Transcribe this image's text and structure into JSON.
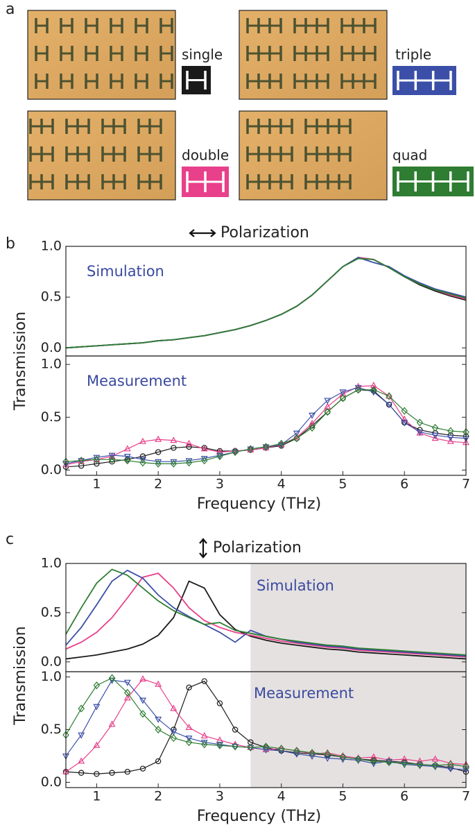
{
  "panel_a": {
    "label": "a"
  },
  "chart_data": [
    {
      "type": "line",
      "panel": "b",
      "title": "Polarization",
      "annotation": "Simulation",
      "ylabel": "Transmission",
      "x": [
        0.5,
        0.75,
        1,
        1.25,
        1.5,
        1.75,
        2,
        2.25,
        2.5,
        2.75,
        3,
        3.25,
        3.5,
        3.75,
        4,
        4.25,
        4.5,
        4.75,
        5,
        5.25,
        5.5,
        5.75,
        6,
        6.25,
        6.5,
        6.75,
        7
      ],
      "xlim": [
        0.5,
        7
      ],
      "ylim": [
        -0.08,
        1.0
      ],
      "yticks": [
        {
          "value": 0,
          "label": "0.0"
        },
        {
          "value": 0.5,
          "label": "0.5"
        },
        {
          "value": 1,
          "label": "1.0"
        }
      ],
      "series": [
        {
          "name": "single",
          "color": "#1a1a1a",
          "values": [
            0.0,
            0.01,
            0.02,
            0.03,
            0.04,
            0.05,
            0.07,
            0.08,
            0.1,
            0.12,
            0.15,
            0.18,
            0.22,
            0.27,
            0.33,
            0.41,
            0.52,
            0.66,
            0.8,
            0.89,
            0.87,
            0.79,
            0.7,
            0.62,
            0.56,
            0.51,
            0.47
          ]
        },
        {
          "name": "double",
          "color": "#e8408a",
          "values": [
            0.0,
            0.01,
            0.02,
            0.03,
            0.04,
            0.05,
            0.07,
            0.08,
            0.1,
            0.12,
            0.15,
            0.18,
            0.22,
            0.27,
            0.33,
            0.41,
            0.52,
            0.66,
            0.8,
            0.89,
            0.87,
            0.79,
            0.7,
            0.63,
            0.57,
            0.52,
            0.48
          ]
        },
        {
          "name": "triple",
          "color": "#3b4fa8",
          "values": [
            0.0,
            0.01,
            0.02,
            0.03,
            0.04,
            0.05,
            0.07,
            0.08,
            0.1,
            0.12,
            0.15,
            0.18,
            0.22,
            0.27,
            0.33,
            0.41,
            0.52,
            0.66,
            0.8,
            0.89,
            0.84,
            0.8,
            0.71,
            0.64,
            0.58,
            0.54,
            0.5
          ]
        },
        {
          "name": "quad",
          "color": "#2e7d32",
          "values": [
            0.0,
            0.01,
            0.02,
            0.03,
            0.04,
            0.05,
            0.07,
            0.08,
            0.1,
            0.12,
            0.15,
            0.18,
            0.22,
            0.27,
            0.33,
            0.41,
            0.52,
            0.66,
            0.8,
            0.88,
            0.87,
            0.79,
            0.7,
            0.63,
            0.57,
            0.53,
            0.49
          ]
        }
      ]
    },
    {
      "type": "line",
      "markers": true,
      "annotation": "Measurement",
      "xlabel": "Frequency (THz)",
      "x": [
        0.5,
        0.75,
        1,
        1.25,
        1.5,
        1.75,
        2,
        2.25,
        2.5,
        2.75,
        3,
        3.25,
        3.5,
        3.75,
        4,
        4.25,
        4.5,
        4.75,
        5,
        5.25,
        5.5,
        5.75,
        6,
        6.25,
        6.5,
        6.75,
        7
      ],
      "xlim": [
        0.5,
        7
      ],
      "ylim": [
        -0.05,
        1.08
      ],
      "xticks": [
        1,
        2,
        3,
        4,
        5,
        6,
        7
      ],
      "yticks": [
        {
          "value": 0,
          "label": "0.0"
        },
        {
          "value": 0.5,
          "label": "0.5"
        },
        {
          "value": 1,
          "label": "1.0"
        }
      ],
      "series": [
        {
          "color": "#1a1a1a",
          "marker": "circle",
          "values": [
            0.03,
            0.04,
            0.06,
            0.08,
            0.1,
            0.13,
            0.17,
            0.21,
            0.22,
            0.21,
            0.18,
            0.18,
            0.19,
            0.21,
            0.23,
            0.3,
            0.42,
            0.55,
            0.68,
            0.76,
            0.75,
            0.62,
            0.45,
            0.38,
            0.35,
            0.33,
            0.32
          ]
        },
        {
          "color": "#e8408a",
          "marker": "triangle-up",
          "values": [
            0.05,
            0.08,
            0.1,
            0.13,
            0.2,
            0.27,
            0.29,
            0.28,
            0.25,
            0.2,
            0.17,
            0.18,
            0.19,
            0.21,
            0.24,
            0.31,
            0.44,
            0.6,
            0.72,
            0.79,
            0.8,
            0.7,
            0.48,
            0.35,
            0.3,
            0.27,
            0.26
          ]
        },
        {
          "color": "#3b4fa8",
          "marker": "triangle-down",
          "values": [
            0.06,
            0.09,
            0.12,
            0.14,
            0.13,
            0.1,
            0.08,
            0.08,
            0.09,
            0.11,
            0.14,
            0.17,
            0.2,
            0.22,
            0.24,
            0.35,
            0.52,
            0.66,
            0.74,
            0.78,
            0.74,
            0.62,
            0.45,
            0.36,
            0.33,
            0.31,
            0.3
          ]
        },
        {
          "color": "#2e7d32",
          "marker": "diamond",
          "values": [
            0.08,
            0.09,
            0.1,
            0.1,
            0.09,
            0.07,
            0.06,
            0.06,
            0.07,
            0.09,
            0.13,
            0.17,
            0.2,
            0.22,
            0.25,
            0.3,
            0.4,
            0.55,
            0.68,
            0.76,
            0.76,
            0.7,
            0.56,
            0.45,
            0.4,
            0.37,
            0.36
          ]
        }
      ]
    },
    {
      "type": "line",
      "panel": "c",
      "title": "Polarization",
      "annotation": "Simulation",
      "ylabel": "Transmission",
      "shade": [
        3.5,
        7
      ],
      "x": [
        0.5,
        0.75,
        1,
        1.25,
        1.5,
        1.75,
        2,
        2.25,
        2.5,
        2.75,
        3,
        3.25,
        3.5,
        3.75,
        4,
        4.25,
        4.5,
        4.75,
        5,
        5.25,
        5.5,
        5.75,
        6,
        6.25,
        6.5,
        6.75,
        7
      ],
      "xlim": [
        0.5,
        7
      ],
      "ylim": [
        -0.1,
        1.0
      ],
      "yticks": [
        {
          "value": 0,
          "label": "0.0"
        },
        {
          "value": 0.5,
          "label": "0.5"
        },
        {
          "value": 1,
          "label": "1.0"
        }
      ],
      "series": [
        {
          "color": "#1a1a1a",
          "values": [
            0.03,
            0.05,
            0.07,
            0.1,
            0.13,
            0.18,
            0.27,
            0.45,
            0.82,
            0.75,
            0.48,
            0.33,
            0.26,
            0.22,
            0.19,
            0.17,
            0.15,
            0.13,
            0.12,
            0.1,
            0.09,
            0.08,
            0.07,
            0.06,
            0.05,
            0.04,
            0.03
          ]
        },
        {
          "color": "#e8408a",
          "values": [
            0.13,
            0.2,
            0.3,
            0.45,
            0.65,
            0.86,
            0.9,
            0.75,
            0.55,
            0.42,
            0.35,
            0.3,
            0.27,
            0.24,
            0.21,
            0.19,
            0.17,
            0.15,
            0.14,
            0.12,
            0.11,
            0.1,
            0.09,
            0.08,
            0.07,
            0.06,
            0.05
          ]
        },
        {
          "color": "#3b4fa8",
          "values": [
            0.17,
            0.35,
            0.58,
            0.82,
            0.93,
            0.85,
            0.68,
            0.55,
            0.46,
            0.38,
            0.3,
            0.2,
            0.32,
            0.26,
            0.23,
            0.2,
            0.18,
            0.16,
            0.15,
            0.13,
            0.12,
            0.11,
            0.1,
            0.09,
            0.08,
            0.07,
            0.06
          ]
        },
        {
          "color": "#2e7d32",
          "values": [
            0.28,
            0.55,
            0.8,
            0.94,
            0.88,
            0.75,
            0.62,
            0.52,
            0.45,
            0.38,
            0.4,
            0.32,
            0.29,
            0.26,
            0.23,
            0.21,
            0.19,
            0.17,
            0.16,
            0.14,
            0.13,
            0.12,
            0.11,
            0.1,
            0.09,
            0.08,
            0.07
          ]
        }
      ]
    },
    {
      "type": "line",
      "markers": true,
      "annotation": "Measurement",
      "xlabel": "Frequency (THz)",
      "shade": [
        3.5,
        7
      ],
      "x": [
        0.5,
        0.75,
        1,
        1.25,
        1.5,
        1.75,
        2,
        2.25,
        2.5,
        2.75,
        3,
        3.25,
        3.5,
        3.75,
        4,
        4.25,
        4.5,
        4.75,
        5,
        5.25,
        5.5,
        5.75,
        6,
        6.25,
        6.5,
        6.75,
        7
      ],
      "xlim": [
        0.5,
        7
      ],
      "ylim": [
        -0.05,
        1.05
      ],
      "xticks": [
        1,
        2,
        3,
        4,
        5,
        6,
        7
      ],
      "yticks": [
        {
          "value": 0,
          "label": "0.0"
        },
        {
          "value": 0.5,
          "label": "0.5"
        },
        {
          "value": 1,
          "label": "1.0"
        }
      ],
      "series": [
        {
          "color": "#1a1a1a",
          "marker": "circle",
          "values": [
            0.1,
            0.09,
            0.08,
            0.09,
            0.1,
            0.13,
            0.2,
            0.5,
            0.9,
            0.96,
            0.75,
            0.5,
            0.38,
            0.33,
            0.3,
            0.28,
            0.27,
            0.26,
            0.24,
            0.22,
            0.21,
            0.2,
            0.19,
            0.17,
            0.16,
            0.14,
            0.1
          ]
        },
        {
          "color": "#e8408a",
          "marker": "triangle-up",
          "values": [
            0.1,
            0.2,
            0.35,
            0.55,
            0.8,
            0.98,
            0.93,
            0.7,
            0.52,
            0.44,
            0.4,
            0.36,
            0.33,
            0.31,
            0.32,
            0.3,
            0.27,
            0.28,
            0.25,
            0.23,
            0.24,
            0.21,
            0.22,
            0.2,
            0.22,
            0.18,
            0.17
          ]
        },
        {
          "color": "#3b4fa8",
          "marker": "triangle-down",
          "values": [
            0.25,
            0.45,
            0.72,
            0.97,
            0.95,
            0.78,
            0.6,
            0.48,
            0.42,
            0.38,
            0.36,
            0.34,
            0.33,
            0.31,
            0.3,
            0.27,
            0.25,
            0.23,
            0.22,
            0.21,
            0.18,
            0.2,
            0.17,
            0.16,
            0.15,
            0.13,
            0.12
          ]
        },
        {
          "color": "#2e7d32",
          "marker": "diamond",
          "values": [
            0.45,
            0.7,
            0.92,
            0.99,
            0.85,
            0.65,
            0.5,
            0.42,
            0.38,
            0.36,
            0.35,
            0.34,
            0.33,
            0.34,
            0.32,
            0.3,
            0.28,
            0.27,
            0.24,
            0.22,
            0.2,
            0.19,
            0.18,
            0.17,
            0.16,
            0.17,
            0.15
          ]
        }
      ]
    }
  ]
}
